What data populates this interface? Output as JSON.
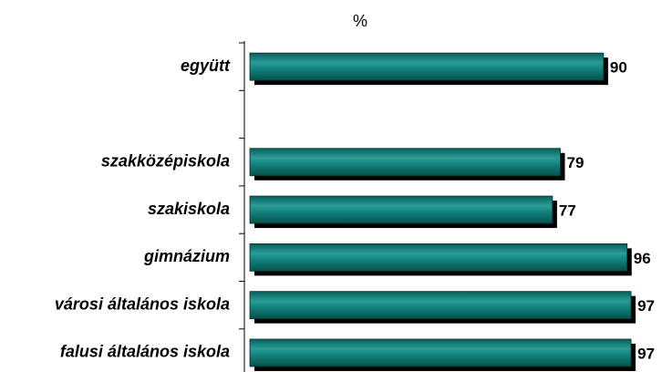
{
  "chart_data": {
    "type": "bar",
    "orientation": "horizontal",
    "subtitle": "%",
    "categories": [
      "együtt",
      null,
      "szakközépiskola",
      "szakiskola",
      "gimnázium",
      "városi általános iskola",
      "falusi általános iskola"
    ],
    "values": [
      90,
      null,
      79,
      77,
      96,
      97,
      97
    ],
    "color": "#0f7a76",
    "xlim": [
      0,
      100
    ],
    "grid": false
  }
}
